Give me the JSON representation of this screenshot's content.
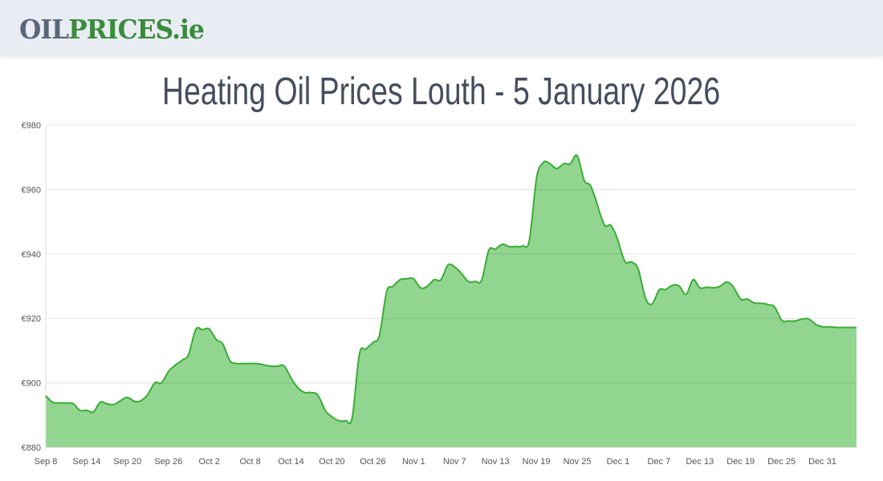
{
  "header": {
    "logo_part1": "OIL",
    "logo_part2": "PRICES.ie"
  },
  "page_title": "Heating Oil Prices Louth - 5 January 2026",
  "colors": {
    "line": "#3aad35",
    "fill": "#91d591",
    "grid": "#e2e2e2",
    "header_bg": "#e9ecf3",
    "title": "#454d5d"
  },
  "chart_data": {
    "type": "area",
    "title": "",
    "xlabel": "",
    "ylabel": "",
    "ylim": [
      880,
      980
    ],
    "grid": true,
    "y_ticks": [
      880,
      900,
      920,
      940,
      960,
      980
    ],
    "y_tick_labels": [
      "€880",
      "€900",
      "€920",
      "€940",
      "€960",
      "€980"
    ],
    "x_tick_labels": [
      "Sep 8",
      "Sep 14",
      "Sep 20",
      "Sep 26",
      "Oct 2",
      "Oct 8",
      "Oct 14",
      "Oct 20",
      "Oct 26",
      "Nov 1",
      "Nov 7",
      "Nov 13",
      "Nov 19",
      "Nov 25",
      "Dec 1",
      "Dec 7",
      "Dec 13",
      "Dec 19",
      "Dec 25",
      "Dec 31"
    ],
    "x": [
      "Sep 8",
      "Sep 9",
      "Sep 10",
      "Sep 11",
      "Sep 12",
      "Sep 13",
      "Sep 14",
      "Sep 15",
      "Sep 16",
      "Sep 17",
      "Sep 18",
      "Sep 19",
      "Sep 20",
      "Sep 21",
      "Sep 22",
      "Sep 23",
      "Sep 24",
      "Sep 25",
      "Sep 26",
      "Sep 27",
      "Sep 28",
      "Sep 29",
      "Sep 30",
      "Oct 1",
      "Oct 2",
      "Oct 3",
      "Oct 4",
      "Oct 5",
      "Oct 6",
      "Oct 7",
      "Oct 8",
      "Oct 9",
      "Oct 10",
      "Oct 11",
      "Oct 12",
      "Oct 13",
      "Oct 14",
      "Oct 15",
      "Oct 16",
      "Oct 17",
      "Oct 18",
      "Oct 19",
      "Oct 20",
      "Oct 21",
      "Oct 22",
      "Oct 23",
      "Oct 24",
      "Oct 25",
      "Oct 26",
      "Oct 27",
      "Oct 28",
      "Oct 29",
      "Oct 30",
      "Oct 31",
      "Nov 1",
      "Nov 2",
      "Nov 3",
      "Nov 4",
      "Nov 5",
      "Nov 6",
      "Nov 7",
      "Nov 8",
      "Nov 9",
      "Nov 10",
      "Nov 11",
      "Nov 12",
      "Nov 13",
      "Nov 14",
      "Nov 15",
      "Nov 16",
      "Nov 17",
      "Nov 18",
      "Nov 19",
      "Nov 20",
      "Nov 21",
      "Nov 22",
      "Nov 23",
      "Nov 24",
      "Nov 25",
      "Nov 26",
      "Nov 27",
      "Nov 28",
      "Nov 29",
      "Nov 30",
      "Dec 1",
      "Dec 2",
      "Dec 3",
      "Dec 4",
      "Dec 5",
      "Dec 6",
      "Dec 7",
      "Dec 8",
      "Dec 9",
      "Dec 10",
      "Dec 11",
      "Dec 12",
      "Dec 13",
      "Dec 14",
      "Dec 15",
      "Dec 16",
      "Dec 17",
      "Dec 18",
      "Dec 19",
      "Dec 20",
      "Dec 21",
      "Dec 22",
      "Dec 23",
      "Dec 24",
      "Dec 25",
      "Dec 26",
      "Dec 27",
      "Dec 28",
      "Dec 29",
      "Dec 30",
      "Dec 31",
      "Jan 1",
      "Jan 2",
      "Jan 3",
      "Jan 4",
      "Jan 5"
    ],
    "values": [
      896,
      894,
      893.8,
      893.7,
      893.6,
      891.5,
      891.5,
      891,
      894,
      893.5,
      893.3,
      894.5,
      895.5,
      894.3,
      894.5,
      896.5,
      900,
      900,
      903.5,
      905.5,
      907,
      909,
      916.5,
      916.5,
      916.7,
      913.5,
      912,
      907,
      906,
      906,
      906,
      906,
      905.6,
      905.2,
      905.2,
      905.2,
      901.5,
      898.5,
      897,
      897,
      896,
      891.5,
      889.5,
      888.3,
      888.3,
      889.5,
      908.5,
      910.5,
      912.5,
      915,
      928,
      930,
      932,
      932.3,
      932.3,
      929.5,
      930,
      932,
      932,
      936.5,
      936,
      934,
      931.5,
      931.5,
      932,
      941,
      941.5,
      943,
      942.3,
      942.3,
      942.5,
      944.5,
      963,
      968.3,
      968,
      966.5,
      968,
      968,
      970.5,
      963,
      961,
      955,
      949,
      948.8,
      944,
      937.7,
      937.5,
      935,
      926.5,
      924.5,
      928.8,
      929,
      930.3,
      930,
      927.5,
      932,
      929.5,
      929.7,
      929.5,
      930,
      931.3,
      929.5,
      926,
      926,
      924.8,
      924.7,
      924.3,
      923.5,
      919.5,
      919.2,
      919.2,
      919.8,
      919.8,
      918.2,
      917.4,
      917.4,
      917.2,
      917.2,
      917.2,
      917.2
    ]
  }
}
